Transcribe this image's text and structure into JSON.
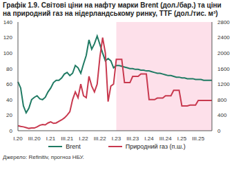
{
  "chart_data": {
    "type": "line",
    "title": "Графік 1.9. Світові ціни на нафту марки Brent (дол./бар.) та ціни на природний газ на нідерландському ринку, TTF (дол./тис. м³)",
    "source": "Джерело: Refinitiv, прогноз НБУ.",
    "categories": [
      "I.20",
      null,
      null,
      null,
      null,
      null,
      "III.20",
      null,
      null,
      null,
      null,
      null,
      "I.21",
      null,
      null,
      null,
      null,
      null,
      "III.21",
      null,
      null,
      null,
      null,
      null,
      "I.22",
      null,
      null,
      null,
      null,
      null,
      "III.22",
      null,
      null,
      null,
      null,
      null,
      "I.23",
      null,
      null,
      null,
      null,
      null,
      "III.23",
      null,
      null,
      null,
      null,
      null,
      "I.24",
      null,
      null,
      null,
      null,
      null,
      "III.24",
      null,
      null,
      null,
      null,
      null,
      "I.25",
      null,
      null,
      null,
      null,
      null,
      "III.25",
      null,
      null,
      null,
      null,
      null
    ],
    "shaded_from": "I.23",
    "series": [
      {
        "name": "Brent",
        "color": "#1f7a63",
        "axis": "y",
        "values": [
          63,
          55,
          32,
          23,
          29,
          40,
          43,
          45,
          41,
          40,
          43,
          50,
          55,
          62,
          65,
          65,
          68,
          73,
          75,
          71,
          74,
          84,
          81,
          74,
          86,
          97,
          117,
          105,
          112,
          122,
          111,
          100,
          90,
          93,
          90,
          81,
          84,
          84,
          83,
          82,
          81,
          80,
          80,
          79,
          79,
          78,
          78,
          77,
          77,
          76,
          75,
          74,
          74,
          73,
          72,
          71,
          71,
          70,
          69,
          69,
          68,
          68,
          67,
          67,
          67,
          66,
          66,
          66,
          65,
          65,
          65,
          65
        ]
      },
      {
        "name": "Природний газ (п.ш.)",
        "color": "#c8384e",
        "axis": "y2",
        "values": [
          130,
          110,
          100,
          80,
          60,
          70,
          70,
          100,
          140,
          160,
          150,
          200,
          230,
          190,
          200,
          240,
          280,
          330,
          400,
          490,
          800,
          1000,
          850,
          1200,
          900,
          850,
          1400,
          1150,
          1000,
          1200,
          1900,
          2400,
          2000,
          750,
          1150,
          1200,
          1840,
          1840,
          1840,
          1240,
          1240,
          1240,
          1400,
          1400,
          1400,
          1460,
          1460,
          1460,
          800,
          800,
          800,
          840,
          840,
          840,
          900,
          900,
          900,
          1040,
          1040,
          1040,
          640,
          640,
          640,
          660,
          660,
          660,
          780,
          780,
          780,
          780,
          780,
          780
        ]
      }
    ],
    "ylim": [
      0,
      140
    ],
    "yticks": [
      0,
      20,
      40,
      60,
      80,
      100,
      120,
      140
    ],
    "y2lim": [
      0,
      2800
    ],
    "y2ticks": [
      0,
      400,
      800,
      1200,
      1600,
      2000,
      2400,
      2800
    ],
    "grid": false
  }
}
